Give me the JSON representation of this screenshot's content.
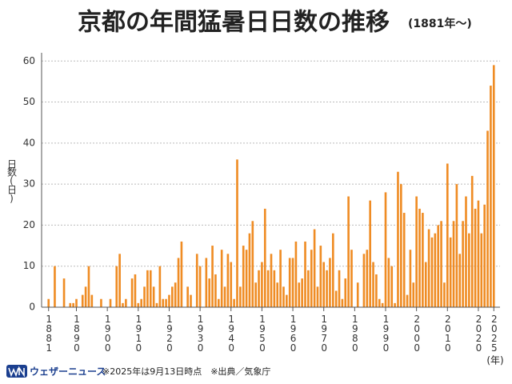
{
  "chart_data": {
    "type": "bar",
    "title": "京都の年間猛暑日日数の推移",
    "subtitle": "(1881年〜)",
    "y_label": "日数(日)",
    "x_label": "(年)",
    "brand": "ウェザーニュース",
    "notes": "※2025年は9月13日時点　※出典／気象庁",
    "color": "#ef8c24",
    "grid": true,
    "x": [
      1881,
      1882,
      1883,
      1884,
      1885,
      1886,
      1887,
      1888,
      1889,
      1890,
      1891,
      1892,
      1893,
      1894,
      1895,
      1896,
      1897,
      1898,
      1899,
      1900,
      1901,
      1902,
      1903,
      1904,
      1905,
      1906,
      1907,
      1908,
      1909,
      1910,
      1911,
      1912,
      1913,
      1914,
      1915,
      1916,
      1917,
      1918,
      1919,
      1920,
      1921,
      1922,
      1923,
      1924,
      1925,
      1926,
      1927,
      1928,
      1929,
      1930,
      1931,
      1932,
      1933,
      1934,
      1935,
      1936,
      1937,
      1938,
      1939,
      1940,
      1941,
      1942,
      1943,
      1944,
      1945,
      1946,
      1947,
      1948,
      1949,
      1950,
      1951,
      1952,
      1953,
      1954,
      1955,
      1956,
      1957,
      1958,
      1959,
      1960,
      1961,
      1962,
      1963,
      1964,
      1965,
      1966,
      1967,
      1968,
      1969,
      1970,
      1971,
      1972,
      1973,
      1974,
      1975,
      1976,
      1977,
      1978,
      1979,
      1980,
      1981,
      1982,
      1983,
      1984,
      1985,
      1986,
      1987,
      1988,
      1989,
      1990,
      1991,
      1992,
      1993,
      1994,
      1995,
      1996,
      1997,
      1998,
      1999,
      2000,
      2001,
      2002,
      2003,
      2004,
      2005,
      2006,
      2007,
      2008,
      2009,
      2010,
      2011,
      2012,
      2013,
      2014,
      2015,
      2016,
      2017,
      2018,
      2019,
      2020,
      2021,
      2022,
      2023,
      2024,
      2025
    ],
    "values": [
      2,
      0,
      10,
      0,
      0,
      7,
      0,
      1,
      1,
      2,
      0,
      3,
      5,
      10,
      3,
      0,
      0,
      2,
      0,
      0,
      2,
      0,
      10,
      13,
      1,
      2,
      0,
      7,
      8,
      1,
      2,
      5,
      9,
      9,
      5,
      1,
      10,
      2,
      2,
      3,
      5,
      6,
      12,
      16,
      0,
      5,
      3,
      0,
      13,
      10,
      0,
      12,
      7,
      15,
      8,
      2,
      14,
      5,
      13,
      11,
      2,
      36,
      5,
      15,
      14,
      18,
      21,
      6,
      9,
      11,
      24,
      9,
      13,
      9,
      6,
      14,
      5,
      3,
      12,
      12,
      16,
      6,
      7,
      16,
      9,
      14,
      19,
      5,
      15,
      11,
      9,
      12,
      18,
      4,
      9,
      2,
      7,
      27,
      14,
      0,
      6,
      0,
      13,
      14,
      26,
      11,
      8,
      2,
      1,
      28,
      12,
      10,
      1,
      33,
      30,
      23,
      3,
      14,
      6,
      27,
      24,
      23,
      11,
      19,
      17,
      18,
      20,
      21,
      6,
      35,
      17,
      21,
      30,
      13,
      21,
      27,
      18,
      32,
      24,
      26,
      18,
      25,
      43,
      54,
      59
    ],
    "xlim": [
      1879,
      2027
    ],
    "xticks": [
      1881,
      1890,
      1900,
      1910,
      1920,
      1930,
      1940,
      1950,
      1960,
      1970,
      1980,
      1990,
      2000,
      2010,
      2020,
      2025
    ],
    "ylim": [
      0,
      62
    ],
    "yticks": [
      0,
      10,
      20,
      30,
      40,
      50,
      60
    ]
  }
}
